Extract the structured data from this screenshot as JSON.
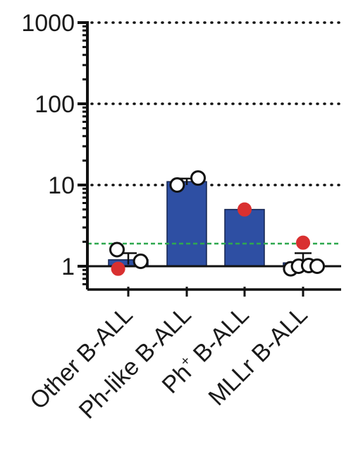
{
  "chart_data": {
    "type": "bar",
    "y_scale": "log10",
    "ylim": [
      0.5,
      1000
    ],
    "y_ticks": [
      {
        "value": 1,
        "label": "1"
      },
      {
        "value": 10,
        "label": "10"
      },
      {
        "value": 100,
        "label": "100"
      },
      {
        "value": 1000,
        "label": "1000"
      }
    ],
    "dotted_gridlines_at": [
      10,
      100,
      1000
    ],
    "baseline": 1,
    "threshold": {
      "value": 1.9,
      "style": "dashed",
      "color": "#2fa84f"
    },
    "categories": [
      {
        "label": "Other B-ALL",
        "label_sup": ""
      },
      {
        "label": "Ph-like B-ALL",
        "label_sup": ""
      },
      {
        "label": "Ph",
        "label_sup": "+",
        "label_rest": " B-ALL"
      },
      {
        "label": "MLLr B-ALL",
        "label_sup": ""
      }
    ],
    "bars": [
      {
        "category": "Other B-ALL",
        "mean": 1.2,
        "error_low": 1.05,
        "error_high": 1.45
      },
      {
        "category": "Ph-like B-ALL",
        "mean": 11,
        "error_low": 10,
        "error_high": 12
      },
      {
        "category": "Ph+ B-ALL",
        "mean": 5,
        "error_low": 5,
        "error_high": 5
      },
      {
        "category": "MLLr B-ALL",
        "mean": 1.1,
        "error_low": 0.95,
        "error_high": 1.45
      }
    ],
    "points": [
      {
        "category": "Other B-ALL",
        "value": 1.6,
        "fill": "open",
        "offset": -0.2
      },
      {
        "category": "Other B-ALL",
        "value": 1.15,
        "fill": "open",
        "offset": 0.22
      },
      {
        "category": "Other B-ALL",
        "value": 0.93,
        "fill": "red",
        "offset": -0.18
      },
      {
        "category": "Ph-like B-ALL",
        "value": 10,
        "fill": "open",
        "offset": -0.17
      },
      {
        "category": "Ph-like B-ALL",
        "value": 12.2,
        "fill": "open",
        "offset": 0.2
      },
      {
        "category": "Ph+ B-ALL",
        "value": 5,
        "fill": "red",
        "offset": 0
      },
      {
        "category": "MLLr B-ALL",
        "value": 1.95,
        "fill": "red",
        "offset": 0
      },
      {
        "category": "MLLr B-ALL",
        "value": 0.93,
        "fill": "open",
        "offset": -0.22
      },
      {
        "category": "MLLr B-ALL",
        "value": 1.0,
        "fill": "open",
        "offset": -0.08
      },
      {
        "category": "MLLr B-ALL",
        "value": 1.02,
        "fill": "open",
        "offset": 0.1
      },
      {
        "category": "MLLr B-ALL",
        "value": 1.0,
        "fill": "open",
        "offset": 0.25
      }
    ],
    "colors": {
      "bar_fill": "#2e4fa3",
      "bar_stroke": "#14244f",
      "red_point": "#d93030",
      "axis": "#111111",
      "gridline": "#111111",
      "threshold": "#2fa84f"
    },
    "grid": "dotted horizontal",
    "legend": "none",
    "title": "",
    "xlabel": "",
    "ylabel": ""
  }
}
